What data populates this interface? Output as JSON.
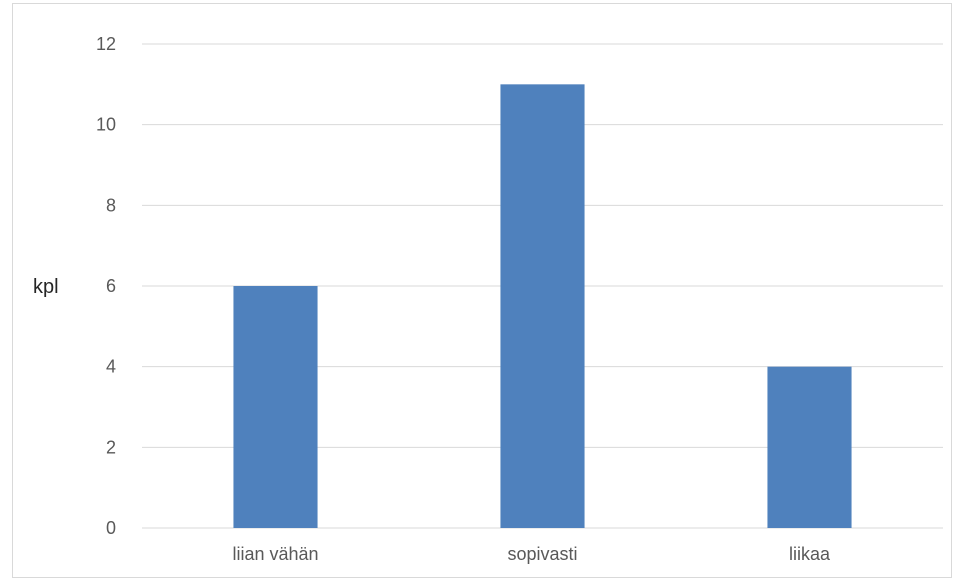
{
  "chart_data": {
    "type": "bar",
    "categories": [
      "liian vähän",
      "sopivasti",
      "liikaa"
    ],
    "values": [
      6,
      11,
      4
    ],
    "title": "",
    "xlabel": "",
    "ylabel": "kpl",
    "ylim": [
      0,
      12
    ],
    "yticks": [
      0,
      2,
      4,
      6,
      8,
      10,
      12
    ],
    "grid": true,
    "legend": "none",
    "colors": {
      "bar": "#4f81bd",
      "grid": "#d9d9d9",
      "axis": "#d9d9d9"
    }
  }
}
